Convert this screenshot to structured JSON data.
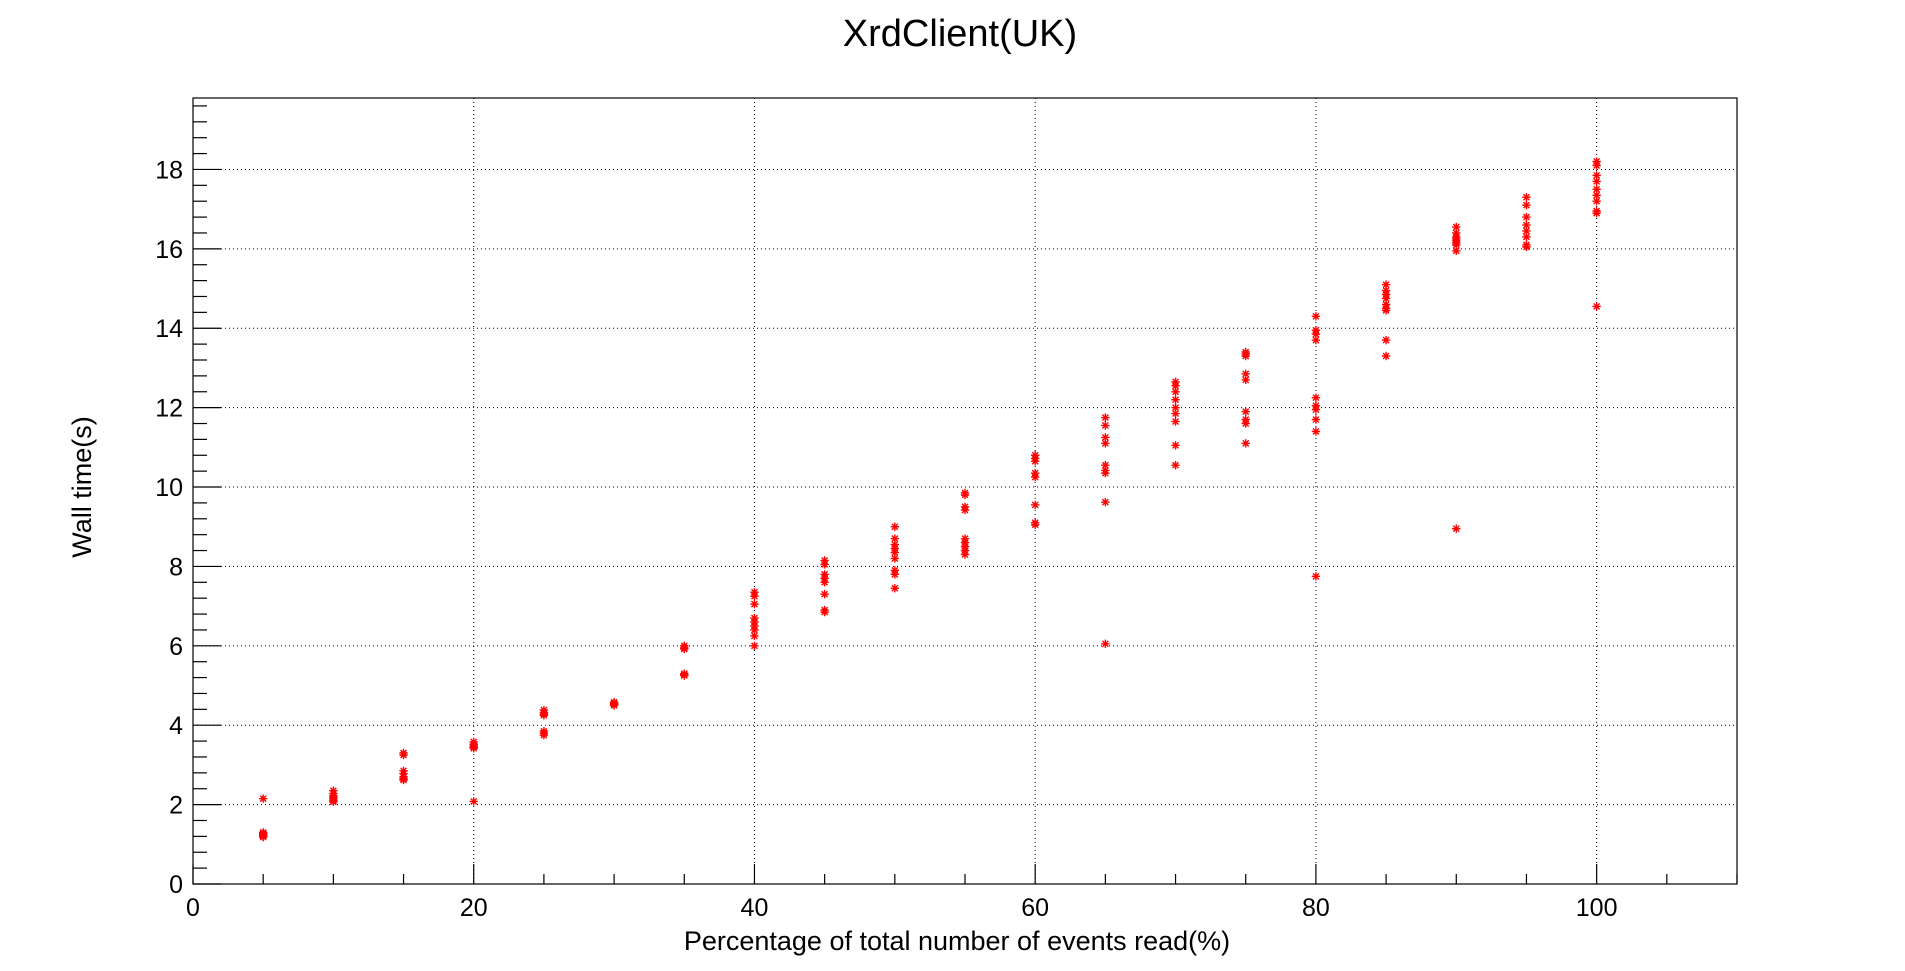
{
  "chart_data": {
    "type": "scatter",
    "title": "XrdClient(UK)",
    "xlabel": "Percentage of total number of events read(%)",
    "ylabel": "Wall time(s)",
    "xlim": [
      0,
      110
    ],
    "ylim": [
      0,
      19.8
    ],
    "x_ticks": [
      0,
      20,
      40,
      60,
      80,
      100
    ],
    "y_ticks": [
      0,
      2,
      4,
      6,
      8,
      10,
      12,
      14,
      16,
      18
    ],
    "x_tick_labels": [
      "0",
      "20",
      "40",
      "60",
      "80",
      "100"
    ],
    "y_tick_labels": [
      "0",
      "2",
      "4",
      "6",
      "8",
      "10",
      "12",
      "14",
      "16",
      "18"
    ],
    "grid": true,
    "legend": "none",
    "marker": "asterisk",
    "colors": {
      "marker": "#ff0000",
      "axes": "#000000",
      "background": "#ffffff"
    },
    "series": [
      {
        "points": [
          [
            5,
            2.15
          ],
          [
            5,
            1.3
          ],
          [
            5,
            1.27
          ],
          [
            5,
            1.25
          ],
          [
            5,
            1.22
          ],
          [
            5,
            1.2
          ],
          [
            5,
            1.18
          ],
          [
            10,
            2.35
          ],
          [
            10,
            2.28
          ],
          [
            10,
            2.22
          ],
          [
            10,
            2.18
          ],
          [
            10,
            2.14
          ],
          [
            10,
            2.1
          ],
          [
            10,
            2.07
          ],
          [
            15,
            3.3
          ],
          [
            15,
            3.25
          ],
          [
            15,
            2.85
          ],
          [
            15,
            2.78
          ],
          [
            15,
            2.7
          ],
          [
            15,
            2.65
          ],
          [
            15,
            2.62
          ],
          [
            20,
            3.58
          ],
          [
            20,
            3.52
          ],
          [
            20,
            3.48
          ],
          [
            20,
            3.45
          ],
          [
            20,
            3.42
          ],
          [
            20,
            2.08
          ],
          [
            25,
            4.38
          ],
          [
            25,
            4.32
          ],
          [
            25,
            4.28
          ],
          [
            25,
            4.25
          ],
          [
            25,
            3.85
          ],
          [
            25,
            3.8
          ],
          [
            25,
            3.75
          ],
          [
            30,
            4.58
          ],
          [
            30,
            4.55
          ],
          [
            30,
            4.52
          ],
          [
            30,
            4.5
          ],
          [
            35,
            6.0
          ],
          [
            35,
            5.95
          ],
          [
            35,
            5.92
          ],
          [
            35,
            5.3
          ],
          [
            35,
            5.27
          ],
          [
            35,
            5.25
          ],
          [
            40,
            7.35
          ],
          [
            40,
            7.25
          ],
          [
            40,
            7.05
          ],
          [
            40,
            6.7
          ],
          [
            40,
            6.6
          ],
          [
            40,
            6.5
          ],
          [
            40,
            6.4
          ],
          [
            40,
            6.25
          ],
          [
            40,
            6.0
          ],
          [
            45,
            8.15
          ],
          [
            45,
            8.05
          ],
          [
            45,
            7.8
          ],
          [
            45,
            7.7
          ],
          [
            45,
            7.6
          ],
          [
            45,
            7.3
          ],
          [
            45,
            6.9
          ],
          [
            45,
            6.85
          ],
          [
            50,
            9.0
          ],
          [
            50,
            8.7
          ],
          [
            50,
            8.55
          ],
          [
            50,
            8.45
          ],
          [
            50,
            8.35
          ],
          [
            50,
            8.2
          ],
          [
            50,
            7.9
          ],
          [
            50,
            7.8
          ],
          [
            50,
            7.45
          ],
          [
            55,
            9.85
          ],
          [
            55,
            9.8
          ],
          [
            55,
            9.5
          ],
          [
            55,
            9.42
          ],
          [
            55,
            8.7
          ],
          [
            55,
            8.6
          ],
          [
            55,
            8.5
          ],
          [
            55,
            8.4
          ],
          [
            55,
            8.3
          ],
          [
            60,
            10.8
          ],
          [
            60,
            10.72
          ],
          [
            60,
            10.65
          ],
          [
            60,
            10.35
          ],
          [
            60,
            10.25
          ],
          [
            60,
            9.55
          ],
          [
            60,
            9.1
          ],
          [
            60,
            9.05
          ],
          [
            65,
            11.75
          ],
          [
            65,
            11.55
          ],
          [
            65,
            11.25
          ],
          [
            65,
            11.1
          ],
          [
            65,
            10.55
          ],
          [
            65,
            10.42
          ],
          [
            65,
            10.35
          ],
          [
            65,
            9.62
          ],
          [
            65,
            6.05
          ],
          [
            70,
            12.65
          ],
          [
            70,
            12.55
          ],
          [
            70,
            12.4
          ],
          [
            70,
            12.2
          ],
          [
            70,
            12.0
          ],
          [
            70,
            11.85
          ],
          [
            70,
            11.65
          ],
          [
            70,
            11.05
          ],
          [
            70,
            10.55
          ],
          [
            75,
            13.4
          ],
          [
            75,
            13.35
          ],
          [
            75,
            13.3
          ],
          [
            75,
            12.85
          ],
          [
            75,
            12.7
          ],
          [
            75,
            11.9
          ],
          [
            75,
            11.7
          ],
          [
            75,
            11.6
          ],
          [
            75,
            11.1
          ],
          [
            80,
            14.3
          ],
          [
            80,
            13.95
          ],
          [
            80,
            13.85
          ],
          [
            80,
            13.7
          ],
          [
            80,
            12.25
          ],
          [
            80,
            12.05
          ],
          [
            80,
            11.95
          ],
          [
            80,
            11.7
          ],
          [
            80,
            11.4
          ],
          [
            80,
            7.75
          ],
          [
            85,
            15.1
          ],
          [
            85,
            14.95
          ],
          [
            85,
            14.85
          ],
          [
            85,
            14.75
          ],
          [
            85,
            14.6
          ],
          [
            85,
            14.5
          ],
          [
            85,
            14.45
          ],
          [
            85,
            13.7
          ],
          [
            85,
            13.3
          ],
          [
            90,
            16.55
          ],
          [
            90,
            16.4
          ],
          [
            90,
            16.3
          ],
          [
            90,
            16.25
          ],
          [
            90,
            16.2
          ],
          [
            90,
            16.15
          ],
          [
            90,
            16.1
          ],
          [
            90,
            15.95
          ],
          [
            90,
            8.95
          ],
          [
            95,
            17.3
          ],
          [
            95,
            17.1
          ],
          [
            95,
            16.8
          ],
          [
            95,
            16.6
          ],
          [
            95,
            16.45
          ],
          [
            95,
            16.3
          ],
          [
            95,
            16.1
          ],
          [
            95,
            16.05
          ],
          [
            100,
            18.2
          ],
          [
            100,
            18.1
          ],
          [
            100,
            17.85
          ],
          [
            100,
            17.7
          ],
          [
            100,
            17.5
          ],
          [
            100,
            17.35
          ],
          [
            100,
            17.2
          ],
          [
            100,
            16.95
          ],
          [
            100,
            16.9
          ],
          [
            100,
            14.55
          ]
        ]
      }
    ]
  }
}
